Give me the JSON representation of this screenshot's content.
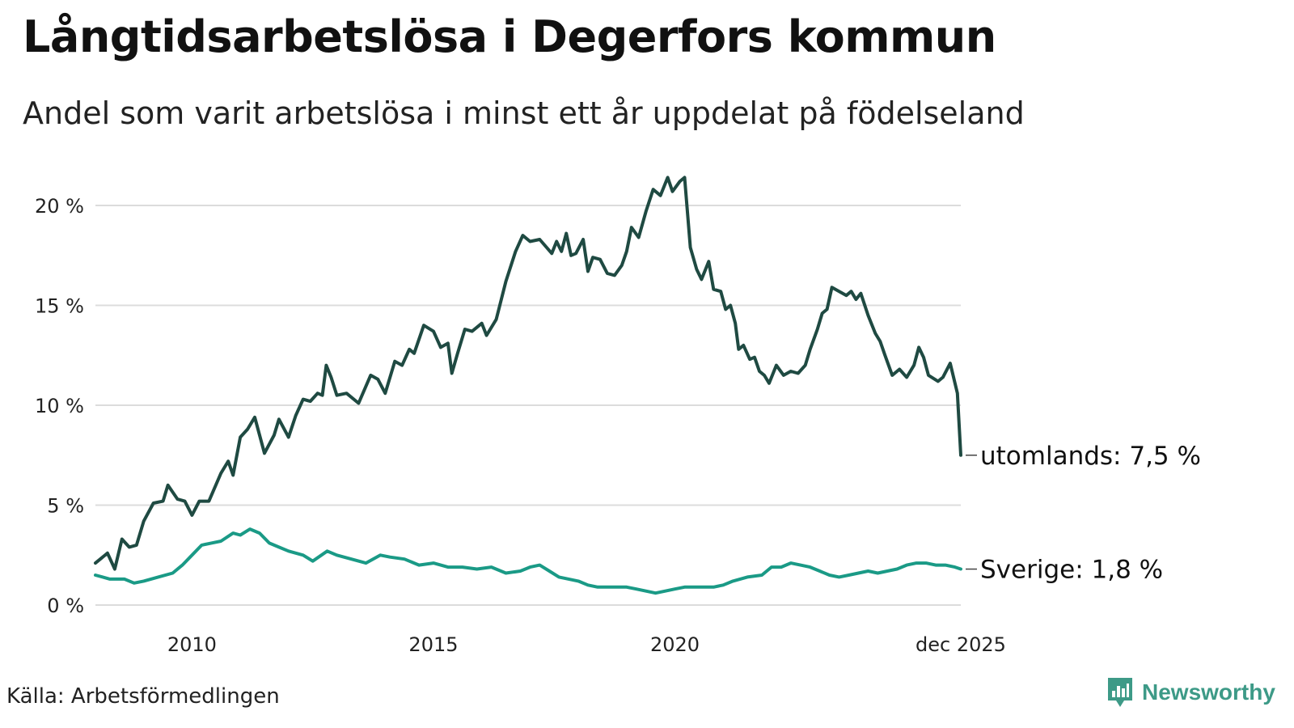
{
  "header": {
    "title": "Långtidsarbetslösa i Degerfors kommun",
    "subtitle": "Andel som varit arbetslösa i minst ett år uppdelat på födelseland"
  },
  "footer": {
    "source": "Källa: Arbetsförmedlingen",
    "brand": "Newsworthy"
  },
  "colors": {
    "foreign": "#1f4a42",
    "sweden": "#1a9a86",
    "grid": "#dcdcdc",
    "brand": "#3d9a87"
  },
  "icons": {
    "logo": "newsworthy-bar-chart-icon"
  },
  "chart_data": {
    "type": "line",
    "title": "Långtidsarbetslösa i Degerfors kommun",
    "subtitle": "Andel som varit arbetslösa i minst ett år uppdelat på födelseland",
    "xlabel": "",
    "ylabel": "",
    "xlim": [
      2008.0,
      2025.92
    ],
    "ylim": [
      0,
      22
    ],
    "grid": true,
    "yticks": [
      0,
      5,
      10,
      15,
      20
    ],
    "ytick_labels": [
      "0 %",
      "5 %",
      "10 %",
      "15 %",
      "20 %"
    ],
    "xticks": [
      2010,
      2015,
      2020,
      2025.92
    ],
    "xtick_labels": [
      "2010",
      "2015",
      "2020",
      "dec 2025"
    ],
    "series": [
      {
        "name": "utomlands",
        "end_label": "utomlands: 7,5 %",
        "points": [
          [
            2008.0,
            2.1
          ],
          [
            2008.25,
            2.6
          ],
          [
            2008.4,
            1.8
          ],
          [
            2008.55,
            3.3
          ],
          [
            2008.7,
            2.9
          ],
          [
            2008.85,
            3.0
          ],
          [
            2009.0,
            4.2
          ],
          [
            2009.2,
            5.1
          ],
          [
            2009.4,
            5.2
          ],
          [
            2009.5,
            6.0
          ],
          [
            2009.7,
            5.3
          ],
          [
            2009.85,
            5.2
          ],
          [
            2010.0,
            4.5
          ],
          [
            2010.15,
            5.2
          ],
          [
            2010.35,
            5.2
          ],
          [
            2010.6,
            6.6
          ],
          [
            2010.75,
            7.2
          ],
          [
            2010.85,
            6.5
          ],
          [
            2011.0,
            8.4
          ],
          [
            2011.15,
            8.8
          ],
          [
            2011.3,
            9.4
          ],
          [
            2011.5,
            7.6
          ],
          [
            2011.7,
            8.5
          ],
          [
            2011.8,
            9.3
          ],
          [
            2012.0,
            8.4
          ],
          [
            2012.15,
            9.5
          ],
          [
            2012.3,
            10.3
          ],
          [
            2012.45,
            10.2
          ],
          [
            2012.6,
            10.6
          ],
          [
            2012.7,
            10.5
          ],
          [
            2012.78,
            12.0
          ],
          [
            2012.88,
            11.4
          ],
          [
            2013.0,
            10.5
          ],
          [
            2013.2,
            10.6
          ],
          [
            2013.45,
            10.1
          ],
          [
            2013.7,
            11.5
          ],
          [
            2013.85,
            11.3
          ],
          [
            2014.0,
            10.6
          ],
          [
            2014.2,
            12.2
          ],
          [
            2014.35,
            12.0
          ],
          [
            2014.5,
            12.8
          ],
          [
            2014.6,
            12.6
          ],
          [
            2014.8,
            14.0
          ],
          [
            2015.0,
            13.7
          ],
          [
            2015.15,
            12.9
          ],
          [
            2015.3,
            13.1
          ],
          [
            2015.38,
            11.6
          ],
          [
            2015.5,
            12.6
          ],
          [
            2015.65,
            13.8
          ],
          [
            2015.8,
            13.7
          ],
          [
            2016.0,
            14.1
          ],
          [
            2016.1,
            13.5
          ],
          [
            2016.3,
            14.3
          ],
          [
            2016.5,
            16.2
          ],
          [
            2016.7,
            17.7
          ],
          [
            2016.85,
            18.5
          ],
          [
            2017.0,
            18.2
          ],
          [
            2017.2,
            18.3
          ],
          [
            2017.45,
            17.6
          ],
          [
            2017.55,
            18.2
          ],
          [
            2017.65,
            17.7
          ],
          [
            2017.75,
            18.6
          ],
          [
            2017.85,
            17.5
          ],
          [
            2017.95,
            17.6
          ],
          [
            2018.1,
            18.3
          ],
          [
            2018.2,
            16.7
          ],
          [
            2018.3,
            17.4
          ],
          [
            2018.45,
            17.3
          ],
          [
            2018.6,
            16.6
          ],
          [
            2018.75,
            16.5
          ],
          [
            2018.9,
            17.0
          ],
          [
            2019.0,
            17.7
          ],
          [
            2019.1,
            18.9
          ],
          [
            2019.25,
            18.4
          ],
          [
            2019.4,
            19.7
          ],
          [
            2019.55,
            20.8
          ],
          [
            2019.7,
            20.5
          ],
          [
            2019.85,
            21.4
          ],
          [
            2019.95,
            20.7
          ],
          [
            2020.1,
            21.2
          ],
          [
            2020.2,
            21.4
          ],
          [
            2020.32,
            17.9
          ],
          [
            2020.45,
            16.8
          ],
          [
            2020.55,
            16.3
          ],
          [
            2020.7,
            17.2
          ],
          [
            2020.8,
            15.8
          ],
          [
            2020.95,
            15.7
          ],
          [
            2021.05,
            14.8
          ],
          [
            2021.15,
            15.0
          ],
          [
            2021.25,
            14.1
          ],
          [
            2021.32,
            12.8
          ],
          [
            2021.42,
            13.0
          ],
          [
            2021.55,
            12.3
          ],
          [
            2021.65,
            12.4
          ],
          [
            2021.75,
            11.7
          ],
          [
            2021.85,
            11.5
          ],
          [
            2021.95,
            11.1
          ],
          [
            2022.1,
            12.0
          ],
          [
            2022.25,
            11.5
          ],
          [
            2022.4,
            11.7
          ],
          [
            2022.55,
            11.6
          ],
          [
            2022.7,
            12.0
          ],
          [
            2022.8,
            12.8
          ],
          [
            2022.95,
            13.8
          ],
          [
            2023.05,
            14.6
          ],
          [
            2023.15,
            14.8
          ],
          [
            2023.25,
            15.9
          ],
          [
            2023.4,
            15.7
          ],
          [
            2023.55,
            15.5
          ],
          [
            2023.65,
            15.7
          ],
          [
            2023.75,
            15.3
          ],
          [
            2023.85,
            15.6
          ],
          [
            2024.0,
            14.5
          ],
          [
            2024.15,
            13.6
          ],
          [
            2024.25,
            13.2
          ],
          [
            2024.35,
            12.5
          ],
          [
            2024.5,
            11.5
          ],
          [
            2024.65,
            11.8
          ],
          [
            2024.8,
            11.4
          ],
          [
            2024.95,
            12.0
          ],
          [
            2025.05,
            12.9
          ],
          [
            2025.15,
            12.4
          ],
          [
            2025.25,
            11.5
          ],
          [
            2025.45,
            11.2
          ],
          [
            2025.55,
            11.4
          ],
          [
            2025.7,
            12.1
          ],
          [
            2025.85,
            10.6
          ],
          [
            2025.92,
            7.5
          ]
        ]
      },
      {
        "name": "Sverige",
        "end_label": "Sverige: 1,8 %",
        "points": [
          [
            2008.0,
            1.5
          ],
          [
            2008.3,
            1.3
          ],
          [
            2008.6,
            1.3
          ],
          [
            2008.8,
            1.1
          ],
          [
            2009.0,
            1.2
          ],
          [
            2009.3,
            1.4
          ],
          [
            2009.6,
            1.6
          ],
          [
            2009.8,
            2.0
          ],
          [
            2010.0,
            2.5
          ],
          [
            2010.2,
            3.0
          ],
          [
            2010.4,
            3.1
          ],
          [
            2010.6,
            3.2
          ],
          [
            2010.85,
            3.6
          ],
          [
            2011.0,
            3.5
          ],
          [
            2011.2,
            3.8
          ],
          [
            2011.4,
            3.6
          ],
          [
            2011.6,
            3.1
          ],
          [
            2011.8,
            2.9
          ],
          [
            2012.0,
            2.7
          ],
          [
            2012.3,
            2.5
          ],
          [
            2012.5,
            2.2
          ],
          [
            2012.8,
            2.7
          ],
          [
            2013.0,
            2.5
          ],
          [
            2013.3,
            2.3
          ],
          [
            2013.6,
            2.1
          ],
          [
            2013.9,
            2.5
          ],
          [
            2014.1,
            2.4
          ],
          [
            2014.4,
            2.3
          ],
          [
            2014.7,
            2.0
          ],
          [
            2015.0,
            2.1
          ],
          [
            2015.3,
            1.9
          ],
          [
            2015.6,
            1.9
          ],
          [
            2015.9,
            1.8
          ],
          [
            2016.2,
            1.9
          ],
          [
            2016.5,
            1.6
          ],
          [
            2016.8,
            1.7
          ],
          [
            2017.0,
            1.9
          ],
          [
            2017.2,
            2.0
          ],
          [
            2017.4,
            1.7
          ],
          [
            2017.6,
            1.4
          ],
          [
            2017.8,
            1.3
          ],
          [
            2018.0,
            1.2
          ],
          [
            2018.2,
            1.0
          ],
          [
            2018.4,
            0.9
          ],
          [
            2018.7,
            0.9
          ],
          [
            2019.0,
            0.9
          ],
          [
            2019.2,
            0.8
          ],
          [
            2019.4,
            0.7
          ],
          [
            2019.6,
            0.6
          ],
          [
            2019.8,
            0.7
          ],
          [
            2020.0,
            0.8
          ],
          [
            2020.2,
            0.9
          ],
          [
            2020.4,
            0.9
          ],
          [
            2020.6,
            0.9
          ],
          [
            2020.8,
            0.9
          ],
          [
            2021.0,
            1.0
          ],
          [
            2021.2,
            1.2
          ],
          [
            2021.5,
            1.4
          ],
          [
            2021.8,
            1.5
          ],
          [
            2022.0,
            1.9
          ],
          [
            2022.2,
            1.9
          ],
          [
            2022.4,
            2.1
          ],
          [
            2022.6,
            2.0
          ],
          [
            2022.8,
            1.9
          ],
          [
            2023.0,
            1.7
          ],
          [
            2023.2,
            1.5
          ],
          [
            2023.4,
            1.4
          ],
          [
            2023.6,
            1.5
          ],
          [
            2023.8,
            1.6
          ],
          [
            2024.0,
            1.7
          ],
          [
            2024.2,
            1.6
          ],
          [
            2024.4,
            1.7
          ],
          [
            2024.6,
            1.8
          ],
          [
            2024.8,
            2.0
          ],
          [
            2025.0,
            2.1
          ],
          [
            2025.2,
            2.1
          ],
          [
            2025.4,
            2.0
          ],
          [
            2025.6,
            2.0
          ],
          [
            2025.8,
            1.9
          ],
          [
            2025.92,
            1.8
          ]
        ]
      }
    ]
  }
}
